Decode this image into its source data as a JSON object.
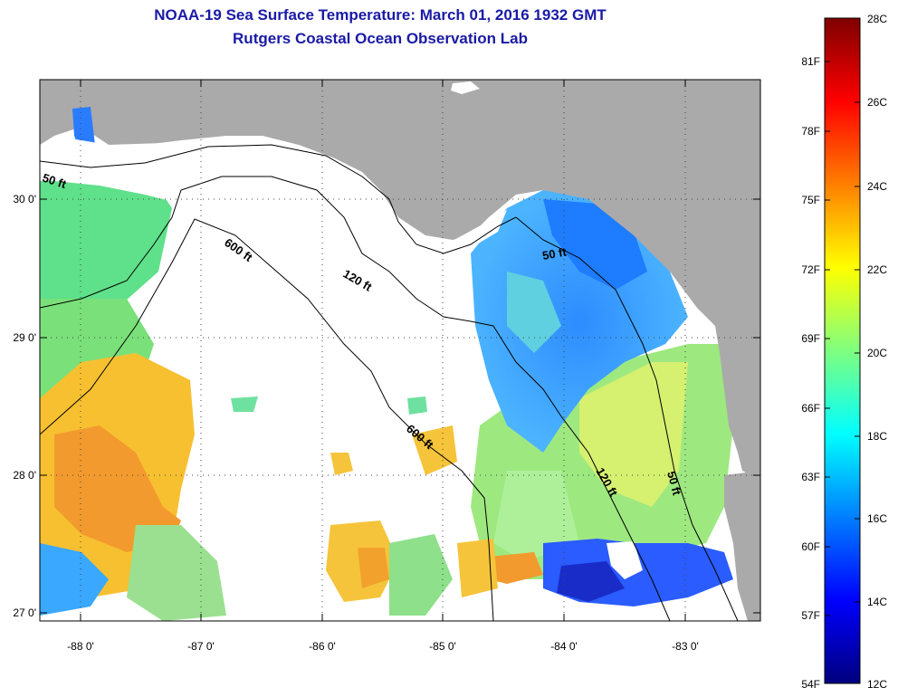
{
  "title_line1": "NOAA-19 Sea Surface Temperature:  March 01, 2016 1932 GMT",
  "title_line2": "Rutgers Coastal Ocean Observation Lab",
  "lon_ticks": [
    "-88 0'",
    "-87 0'",
    "-86 0'",
    "-85 0'",
    "-84 0'",
    "-83 0'"
  ],
  "lat_ticks": [
    "30 0'",
    "29 0'",
    "28 0'",
    "27 0'"
  ],
  "contours": {
    "c50_west": "50 ft",
    "c600_north": "600 ft",
    "c120_north": "120 ft",
    "c50_east": "50 ft",
    "c600_south": "600 ft",
    "c120_south": "120 ft",
    "c50_south": "50 ft"
  },
  "colorbar": {
    "celsius": [
      "28C",
      "26C",
      "24C",
      "22C",
      "20C",
      "18C",
      "16C",
      "14C",
      "12C"
    ],
    "fahrenheit": [
      "81F",
      "78F",
      "75F",
      "72F",
      "69F",
      "66F",
      "63F",
      "60F",
      "57F",
      "54F"
    ],
    "colors": [
      "#00007f",
      "#0000ff",
      "#007fff",
      "#00ffff",
      "#7fff7f",
      "#ffff00",
      "#ff7f00",
      "#ff0000",
      "#7f0000"
    ]
  },
  "colors": {
    "land": "#aaaaaa",
    "cloud": "#ffffff",
    "title": "#1a1aa6"
  }
}
